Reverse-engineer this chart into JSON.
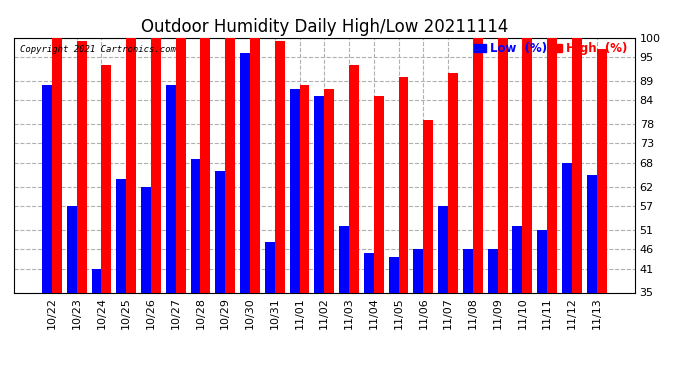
{
  "title": "Outdoor Humidity Daily High/Low 20211114",
  "copyright": "Copyright 2021 Cartronics.com",
  "dates": [
    "10/22",
    "10/23",
    "10/24",
    "10/25",
    "10/26",
    "10/27",
    "10/28",
    "10/29",
    "10/30",
    "10/31",
    "11/01",
    "11/02",
    "11/03",
    "11/04",
    "11/05",
    "11/06",
    "11/07",
    "11/08",
    "11/09",
    "11/10",
    "11/11",
    "11/12",
    "11/13"
  ],
  "high": [
    100,
    99,
    93,
    100,
    100,
    100,
    100,
    100,
    100,
    99,
    88,
    87,
    93,
    85,
    90,
    79,
    91,
    100,
    100,
    100,
    100,
    100,
    97
  ],
  "low": [
    88,
    57,
    41,
    64,
    62,
    88,
    69,
    66,
    96,
    48,
    87,
    85,
    52,
    45,
    44,
    46,
    57,
    46,
    46,
    52,
    51,
    68,
    65
  ],
  "ylim_min": 35,
  "ylim_max": 100,
  "yticks": [
    35,
    41,
    46,
    51,
    57,
    62,
    68,
    73,
    78,
    84,
    89,
    95,
    100
  ],
  "bar_color_high": "#ff0000",
  "bar_color_low": "#0000ff",
  "background_color": "#ffffff",
  "grid_color": "#b0b0b0",
  "title_fontsize": 12,
  "tick_fontsize": 8,
  "legend_low_color": "#0000ff",
  "legend_high_color": "#ff0000",
  "bar_width": 0.4
}
